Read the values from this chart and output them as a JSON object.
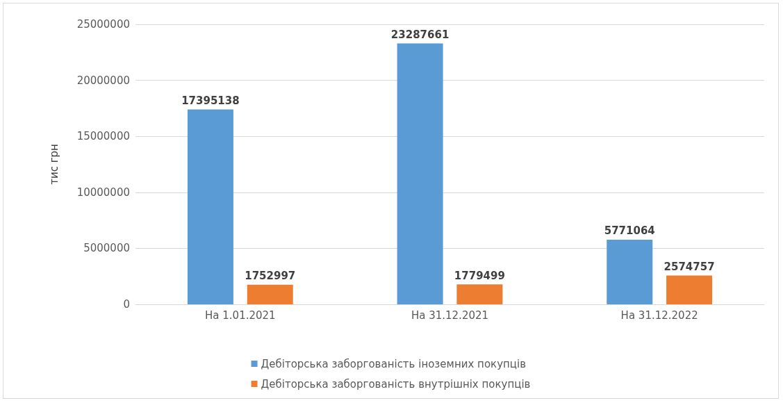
{
  "chart_data": {
    "type": "bar",
    "ylabel": "тис грн",
    "categories": [
      "На 1.01.2021",
      "На 31.12.2021",
      "На 31.12.2022"
    ],
    "series": [
      {
        "name": "Дебіторська заборгованість іноземних покупців",
        "color": "#5b9bd5",
        "values": [
          17395138,
          23287661,
          5771064
        ]
      },
      {
        "name": "Дебіторська заборгованість внутрішніх покупців",
        "color": "#ed7d31",
        "values": [
          1752997,
          1779499,
          2574757
        ]
      }
    ],
    "ylim": [
      0,
      25000000
    ],
    "yticks": [
      0,
      5000000,
      10000000,
      15000000,
      20000000,
      25000000
    ],
    "grid": "y",
    "legend": "bottom",
    "data_labels": true
  }
}
